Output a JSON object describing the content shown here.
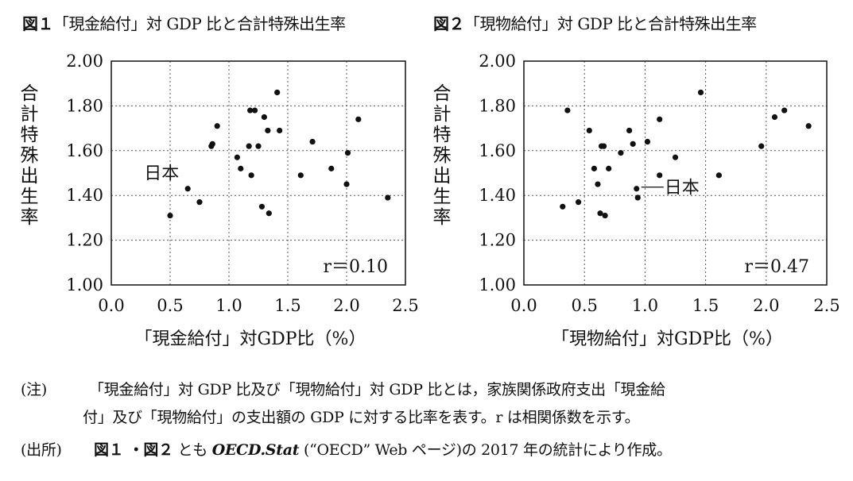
{
  "figures": [
    {
      "label": "図１",
      "title": "「現金給付」対 GDP 比と合計特殊出生率",
      "correlation": "r＝0.10",
      "japan_label": "日本",
      "chart_data": {
        "type": "scatter",
        "xlabel": "「現金給付」対GDP比（%）",
        "ylabel": "合計特殊出生率",
        "xlim": [
          0.0,
          2.5
        ],
        "ylim": [
          1.0,
          2.0
        ],
        "xticks": [
          "0.0",
          "0.5",
          "1.0",
          "1.5",
          "2.0",
          "2.5"
        ],
        "yticks": [
          "1.00",
          "1.20",
          "1.40",
          "1.60",
          "1.80",
          "2.00"
        ],
        "grid": true,
        "points": [
          {
            "x": 0.5,
            "y": 1.31
          },
          {
            "x": 0.65,
            "y": 1.43,
            "label": "日本"
          },
          {
            "x": 0.75,
            "y": 1.37
          },
          {
            "x": 0.85,
            "y": 1.62
          },
          {
            "x": 0.86,
            "y": 1.63
          },
          {
            "x": 0.9,
            "y": 1.71
          },
          {
            "x": 1.07,
            "y": 1.57
          },
          {
            "x": 1.1,
            "y": 1.52
          },
          {
            "x": 1.17,
            "y": 1.62
          },
          {
            "x": 1.18,
            "y": 1.78
          },
          {
            "x": 1.19,
            "y": 1.49
          },
          {
            "x": 1.22,
            "y": 1.78
          },
          {
            "x": 1.25,
            "y": 1.62
          },
          {
            "x": 1.28,
            "y": 1.35
          },
          {
            "x": 1.3,
            "y": 1.75
          },
          {
            "x": 1.33,
            "y": 1.69
          },
          {
            "x": 1.34,
            "y": 1.32
          },
          {
            "x": 1.41,
            "y": 1.86
          },
          {
            "x": 1.43,
            "y": 1.69
          },
          {
            "x": 1.61,
            "y": 1.49
          },
          {
            "x": 1.71,
            "y": 1.64
          },
          {
            "x": 1.87,
            "y": 1.52
          },
          {
            "x": 2.0,
            "y": 1.45
          },
          {
            "x": 2.01,
            "y": 1.59
          },
          {
            "x": 2.1,
            "y": 1.74
          },
          {
            "x": 2.35,
            "y": 1.39
          }
        ]
      }
    },
    {
      "label": "図２",
      "title": "「現物給付」対 GDP 比と合計特殊出生率",
      "correlation": "r＝0.47",
      "japan_label": "日本",
      "chart_data": {
        "type": "scatter",
        "xlabel": "「現物給付」対GDP比（%）",
        "ylabel": "合計特殊出生率",
        "xlim": [
          0.0,
          2.5
        ],
        "ylim": [
          1.0,
          2.0
        ],
        "xticks": [
          "0.0",
          "0.5",
          "1.0",
          "1.5",
          "2.0",
          "2.5"
        ],
        "yticks": [
          "1.00",
          "1.20",
          "1.40",
          "1.60",
          "1.80",
          "2.00"
        ],
        "grid": true,
        "points": [
          {
            "x": 0.32,
            "y": 1.35
          },
          {
            "x": 0.36,
            "y": 1.78
          },
          {
            "x": 0.45,
            "y": 1.37
          },
          {
            "x": 0.54,
            "y": 1.69
          },
          {
            "x": 0.58,
            "y": 1.52
          },
          {
            "x": 0.61,
            "y": 1.45
          },
          {
            "x": 0.63,
            "y": 1.32
          },
          {
            "x": 0.64,
            "y": 1.62
          },
          {
            "x": 0.66,
            "y": 1.62
          },
          {
            "x": 0.67,
            "y": 1.31
          },
          {
            "x": 0.7,
            "y": 1.52
          },
          {
            "x": 0.8,
            "y": 1.59
          },
          {
            "x": 0.87,
            "y": 1.69
          },
          {
            "x": 0.9,
            "y": 1.63
          },
          {
            "x": 0.93,
            "y": 1.43,
            "label": "日本"
          },
          {
            "x": 0.94,
            "y": 1.39
          },
          {
            "x": 1.02,
            "y": 1.64
          },
          {
            "x": 1.12,
            "y": 1.74
          },
          {
            "x": 1.12,
            "y": 1.49
          },
          {
            "x": 1.25,
            "y": 1.57
          },
          {
            "x": 1.46,
            "y": 1.86
          },
          {
            "x": 1.61,
            "y": 1.49
          },
          {
            "x": 1.96,
            "y": 1.62
          },
          {
            "x": 2.07,
            "y": 1.75
          },
          {
            "x": 2.15,
            "y": 1.78
          },
          {
            "x": 2.35,
            "y": 1.71
          }
        ]
      }
    }
  ],
  "notes": {
    "note_label": "(注)",
    "note_text_1": "「現金給付」対 GDP 比及び「現物給付」対 GDP 比とは，家族関係政府支出「現金給",
    "note_text_2": "付」及び「現物給付」の支出額の GDP に対する比率を表す。r は相関係数を示す。",
    "source_label": "(出所)",
    "source_figs": "図１ ・図２",
    "source_mid": "とも",
    "source_italic": "OECD.Stat",
    "source_rest": "(“OECD” Web ページ)の 2017 年の統計により作成。"
  }
}
